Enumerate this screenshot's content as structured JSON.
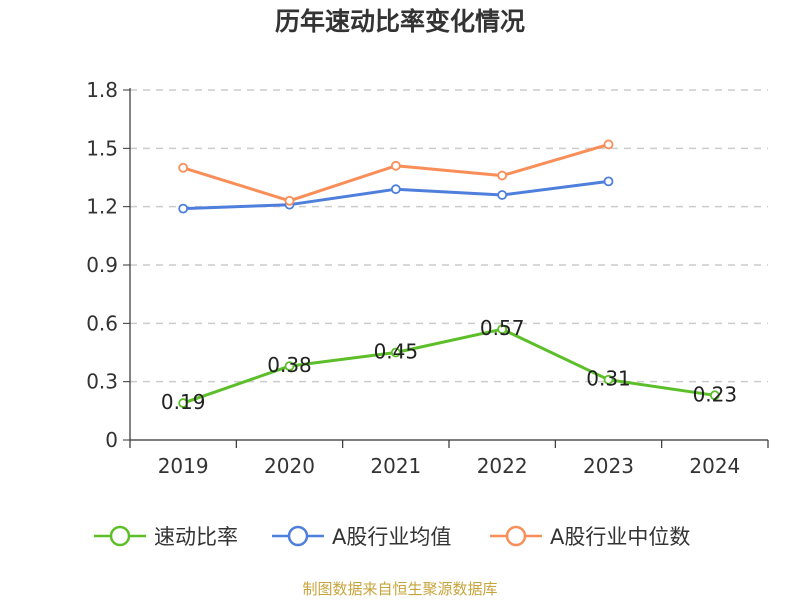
{
  "title": "历年速动比率变化情况",
  "source": "制图数据来自恒生聚源数据库",
  "chart_data": {
    "type": "line",
    "categories": [
      "2019",
      "2020",
      "2021",
      "2022",
      "2023",
      "2024"
    ],
    "ylim": [
      0,
      1.8
    ],
    "yticks": [
      0,
      0.3,
      0.6,
      0.9,
      1.2,
      1.5,
      1.8
    ],
    "ytick_labels": [
      "0",
      "0.3",
      "0.6",
      "0.9",
      "1.2",
      "1.5",
      "1.8"
    ],
    "grid": true,
    "legend_position": "bottom",
    "series": [
      {
        "name": "速动比率",
        "color": "#5cbf2a",
        "values": [
          0.19,
          0.38,
          0.45,
          0.57,
          0.31,
          0.23
        ],
        "labels": [
          "0.19",
          "0.38",
          "0.45",
          "0.57",
          "0.31",
          "0.23"
        ],
        "show_labels": true
      },
      {
        "name": "A股行业均值",
        "color": "#4f7fdc",
        "values": [
          1.19,
          1.21,
          1.29,
          1.26,
          1.33,
          null
        ],
        "show_labels": false
      },
      {
        "name": "A股行业中位数",
        "color": "#f98e58",
        "values": [
          1.4,
          1.23,
          1.41,
          1.36,
          1.52,
          null
        ],
        "show_labels": false
      }
    ]
  }
}
